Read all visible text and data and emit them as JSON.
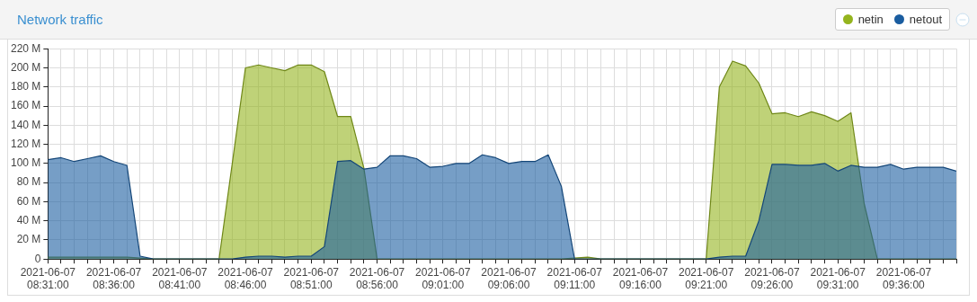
{
  "chart_data": {
    "type": "area",
    "title": "Network traffic",
    "legend": "top right",
    "grid": true,
    "xlim": [
      "2021-06-07T08:31",
      "2021-06-07T09:40"
    ],
    "xticks": [
      {
        "value": "2021-06-07T08:31",
        "label": "2021-06-07 08:31:00"
      },
      {
        "value": "2021-06-07T08:32",
        "label": null
      },
      {
        "value": "2021-06-07T08:33",
        "label": null
      },
      {
        "value": "2021-06-07T08:34",
        "label": null
      },
      {
        "value": "2021-06-07T08:35",
        "label": null
      },
      {
        "value": "2021-06-07T08:36",
        "label": "2021-06-07 08:36:00"
      },
      {
        "value": "2021-06-07T08:37",
        "label": null
      },
      {
        "value": "2021-06-07T08:38",
        "label": null
      },
      {
        "value": "2021-06-07T08:39",
        "label": null
      },
      {
        "value": "2021-06-07T08:40",
        "label": null
      },
      {
        "value": "2021-06-07T08:41",
        "label": "2021-06-07 08:41:00"
      },
      {
        "value": "2021-06-07T08:42",
        "label": null
      },
      {
        "value": "2021-06-07T08:43",
        "label": null
      },
      {
        "value": "2021-06-07T08:44",
        "label": null
      },
      {
        "value": "2021-06-07T08:45",
        "label": null
      },
      {
        "value": "2021-06-07T08:46",
        "label": "2021-06-07 08:46:00"
      },
      {
        "value": "2021-06-07T08:47",
        "label": null
      },
      {
        "value": "2021-06-07T08:48",
        "label": null
      },
      {
        "value": "2021-06-07T08:49",
        "label": null
      },
      {
        "value": "2021-06-07T08:50",
        "label": null
      },
      {
        "value": "2021-06-07T08:51",
        "label": "2021-06-07 08:51:00"
      },
      {
        "value": "2021-06-07T08:52",
        "label": null
      },
      {
        "value": "2021-06-07T08:53",
        "label": null
      },
      {
        "value": "2021-06-07T08:54",
        "label": null
      },
      {
        "value": "2021-06-07T08:55",
        "label": null
      },
      {
        "value": "2021-06-07T08:56",
        "label": "2021-06-07 08:56:00"
      },
      {
        "value": "2021-06-07T08:57",
        "label": null
      },
      {
        "value": "2021-06-07T08:58",
        "label": null
      },
      {
        "value": "2021-06-07T08:59",
        "label": null
      },
      {
        "value": "2021-06-07T09:00",
        "label": null
      },
      {
        "value": "2021-06-07T09:01",
        "label": "2021-06-07 09:01:00"
      },
      {
        "value": "2021-06-07T09:02",
        "label": null
      },
      {
        "value": "2021-06-07T09:03",
        "label": null
      },
      {
        "value": "2021-06-07T09:04",
        "label": null
      },
      {
        "value": "2021-06-07T09:05",
        "label": null
      },
      {
        "value": "2021-06-07T09:06",
        "label": "2021-06-07 09:06:00"
      },
      {
        "value": "2021-06-07T09:07",
        "label": null
      },
      {
        "value": "2021-06-07T09:08",
        "label": null
      },
      {
        "value": "2021-06-07T09:09",
        "label": null
      },
      {
        "value": "2021-06-07T09:10",
        "label": null
      },
      {
        "value": "2021-06-07T09:11",
        "label": "2021-06-07 09:11:00"
      },
      {
        "value": "2021-06-07T09:12",
        "label": null
      },
      {
        "value": "2021-06-07T09:13",
        "label": null
      },
      {
        "value": "2021-06-07T09:14",
        "label": null
      },
      {
        "value": "2021-06-07T09:15",
        "label": null
      },
      {
        "value": "2021-06-07T09:16",
        "label": "2021-06-07 09:16:00"
      },
      {
        "value": "2021-06-07T09:17",
        "label": null
      },
      {
        "value": "2021-06-07T09:18",
        "label": null
      },
      {
        "value": "2021-06-07T09:19",
        "label": null
      },
      {
        "value": "2021-06-07T09:20",
        "label": null
      },
      {
        "value": "2021-06-07T09:21",
        "label": "2021-06-07 09:21:00"
      },
      {
        "value": "2021-06-07T09:22",
        "label": null
      },
      {
        "value": "2021-06-07T09:23",
        "label": null
      },
      {
        "value": "2021-06-07T09:24",
        "label": null
      },
      {
        "value": "2021-06-07T09:25",
        "label": null
      },
      {
        "value": "2021-06-07T09:26",
        "label": "2021-06-07 09:26:00"
      },
      {
        "value": "2021-06-07T09:27",
        "label": null
      },
      {
        "value": "2021-06-07T09:28",
        "label": null
      },
      {
        "value": "2021-06-07T09:29",
        "label": null
      },
      {
        "value": "2021-06-07T09:30",
        "label": null
      },
      {
        "value": "2021-06-07T09:31",
        "label": "2021-06-07 09:31:00"
      },
      {
        "value": "2021-06-07T09:32",
        "label": null
      },
      {
        "value": "2021-06-07T09:33",
        "label": null
      },
      {
        "value": "2021-06-07T09:34",
        "label": null
      },
      {
        "value": "2021-06-07T09:35",
        "label": null
      },
      {
        "value": "2021-06-07T09:36",
        "label": "2021-06-07 09:36:00"
      },
      {
        "value": "2021-06-07T09:37",
        "label": null
      },
      {
        "value": "2021-06-07T09:38",
        "label": null
      },
      {
        "value": "2021-06-07T09:39",
        "label": null
      },
      {
        "value": "2021-06-07T09:40",
        "label": null
      }
    ],
    "x": [
      "2021-06-07T08:31",
      "2021-06-07T08:32",
      "2021-06-07T08:33",
      "2021-06-07T08:34",
      "2021-06-07T08:35",
      "2021-06-07T08:36",
      "2021-06-07T08:37",
      "2021-06-07T08:38",
      "2021-06-07T08:39",
      "2021-06-07T08:40",
      "2021-06-07T08:41",
      "2021-06-07T08:42",
      "2021-06-07T08:43",
      "2021-06-07T08:44",
      "2021-06-07T08:45",
      "2021-06-07T08:46",
      "2021-06-07T08:47",
      "2021-06-07T08:48",
      "2021-06-07T08:49",
      "2021-06-07T08:50",
      "2021-06-07T08:51",
      "2021-06-07T08:52",
      "2021-06-07T08:53",
      "2021-06-07T08:54",
      "2021-06-07T08:55",
      "2021-06-07T08:56",
      "2021-06-07T08:57",
      "2021-06-07T08:58",
      "2021-06-07T08:59",
      "2021-06-07T09:00",
      "2021-06-07T09:01",
      "2021-06-07T09:02",
      "2021-06-07T09:03",
      "2021-06-07T09:04",
      "2021-06-07T09:05",
      "2021-06-07T09:06",
      "2021-06-07T09:07",
      "2021-06-07T09:08",
      "2021-06-07T09:09",
      "2021-06-07T09:10",
      "2021-06-07T09:11",
      "2021-06-07T09:12",
      "2021-06-07T09:13",
      "2021-06-07T09:14",
      "2021-06-07T09:15",
      "2021-06-07T09:16",
      "2021-06-07T09:17",
      "2021-06-07T09:18",
      "2021-06-07T09:19",
      "2021-06-07T09:20",
      "2021-06-07T09:21",
      "2021-06-07T09:22",
      "2021-06-07T09:23",
      "2021-06-07T09:24",
      "2021-06-07T09:25",
      "2021-06-07T09:26",
      "2021-06-07T09:27",
      "2021-06-07T09:28",
      "2021-06-07T09:29",
      "2021-06-07T09:30",
      "2021-06-07T09:31",
      "2021-06-07T09:32",
      "2021-06-07T09:33",
      "2021-06-07T09:34",
      "2021-06-07T09:35",
      "2021-06-07T09:36",
      "2021-06-07T09:37",
      "2021-06-07T09:38",
      "2021-06-07T09:39",
      "2021-06-07T09:40"
    ],
    "ylim": [
      0,
      220
    ],
    "yticks": [
      0,
      {
        "value": 20,
        "label": "20 M"
      },
      {
        "value": 40,
        "label": "40 M"
      },
      {
        "value": 60,
        "label": "60 M"
      },
      {
        "value": 80,
        "label": "80 M"
      },
      {
        "value": 100,
        "label": "100 M"
      },
      {
        "value": 120,
        "label": "120 M"
      },
      {
        "value": 140,
        "label": "140 M"
      },
      {
        "value": 160,
        "label": "160 M"
      },
      {
        "value": 180,
        "label": "180 M"
      },
      {
        "value": 200,
        "label": "200 M"
      },
      {
        "value": 220,
        "label": "220 M"
      }
    ],
    "series": [
      {
        "name": "netin",
        "color": "#94b41e",
        "values": [
          2,
          2,
          2,
          2,
          2,
          2,
          2,
          1,
          0,
          0,
          0,
          0,
          0,
          0,
          100,
          200,
          203,
          200,
          197,
          203,
          203,
          196,
          149,
          149,
          95,
          0,
          0,
          0,
          0,
          0,
          0,
          0,
          0,
          0,
          0,
          0,
          0,
          0,
          0,
          0,
          1,
          2,
          0,
          0,
          0,
          0,
          0,
          0,
          0,
          0,
          0,
          180,
          207,
          202,
          184,
          152,
          153,
          149,
          154,
          150,
          144,
          153,
          58,
          0,
          0,
          0,
          0,
          0,
          0,
          0
        ]
      },
      {
        "name": "netout",
        "color": "#1a5da0",
        "values": [
          104,
          106,
          102,
          105,
          108,
          102,
          98,
          3,
          0,
          0,
          0,
          0,
          0,
          0,
          0,
          2,
          3,
          3,
          2,
          3,
          3,
          13,
          102,
          103,
          94,
          96,
          108,
          108,
          105,
          96,
          97,
          100,
          100,
          109,
          106,
          100,
          102,
          102,
          109,
          76,
          0,
          0,
          0,
          0,
          0,
          0,
          0,
          0,
          0,
          0,
          0,
          2,
          3,
          3,
          40,
          99,
          99,
          98,
          98,
          100,
          92,
          98,
          96,
          96,
          99,
          94,
          96,
          96,
          96,
          92
        ]
      }
    ]
  }
}
